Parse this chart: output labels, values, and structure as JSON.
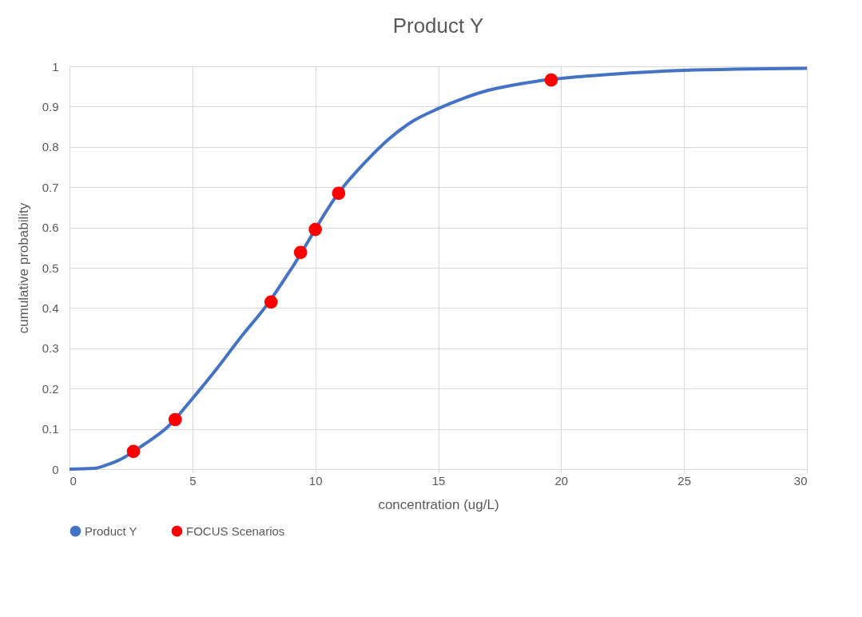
{
  "chart_data": {
    "type": "line",
    "title": "Product Y",
    "xlabel": "concentration (ug/L)",
    "ylabel": "cumulative probability",
    "xlim": [
      0,
      30
    ],
    "xticks": [
      0,
      5,
      10,
      15,
      20,
      25,
      30
    ],
    "ylim": [
      0,
      1
    ],
    "yticks": [
      0,
      0.1,
      0.2,
      0.3,
      0.4,
      0.5,
      0.6,
      0.7,
      0.8,
      0.9,
      1
    ],
    "grid": true,
    "legend": "bottom",
    "series": [
      {
        "name": "Product Y",
        "type": "line",
        "color": "#4472c4",
        "x": [
          0,
          1,
          1.5,
          2,
          3,
          4,
          5,
          6,
          7,
          8,
          9,
          11,
          12,
          13,
          14,
          15,
          16,
          17,
          18,
          19,
          20,
          22,
          25,
          30
        ],
        "values": [
          0,
          0.002,
          0.01,
          0.022,
          0.06,
          0.105,
          0.175,
          0.25,
          0.33,
          0.405,
          0.495,
          0.69,
          0.76,
          0.82,
          0.865,
          0.895,
          0.92,
          0.94,
          0.953,
          0.963,
          0.97,
          0.98,
          0.99,
          0.995
        ]
      },
      {
        "name": "FOCUS Scenarios",
        "type": "scatter",
        "color": "#ff0000",
        "x": [
          2.6,
          4.3,
          8.2,
          9.4,
          10,
          10.95,
          19.6
        ],
        "values": [
          0.044,
          0.123,
          0.415,
          0.538,
          0.595,
          0.685,
          0.966
        ]
      }
    ]
  }
}
